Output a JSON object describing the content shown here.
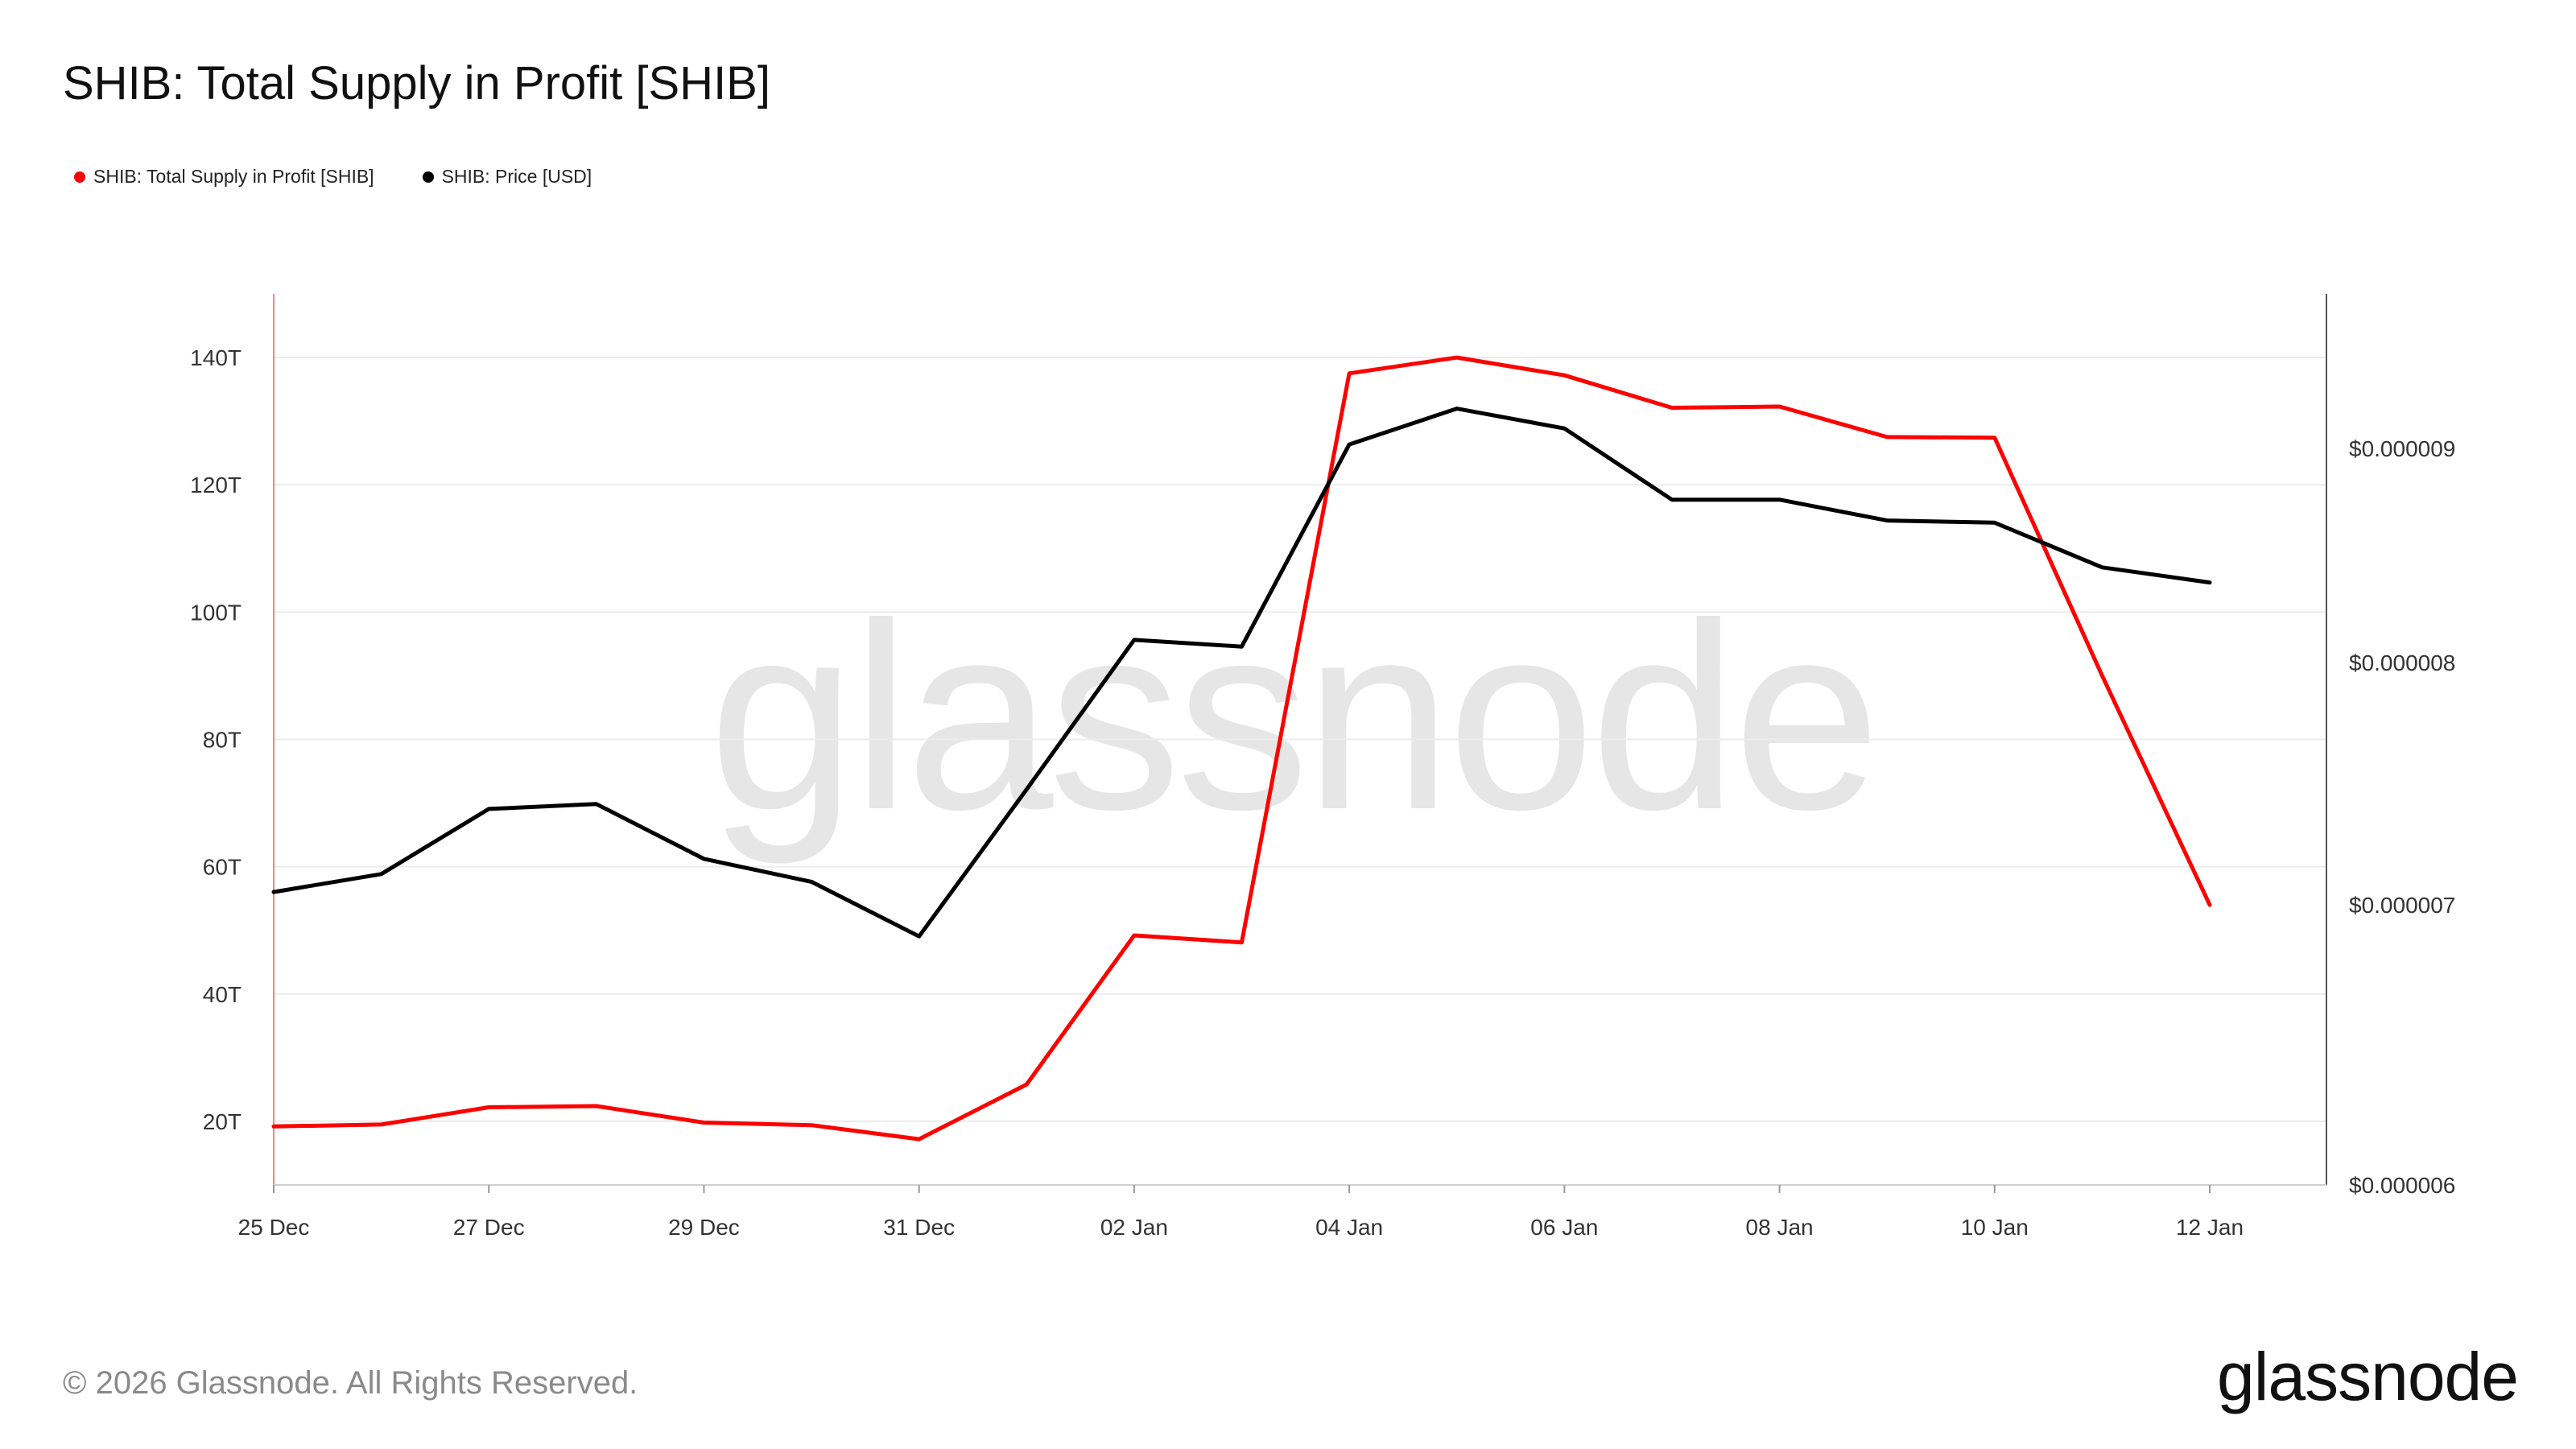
{
  "title": "SHIB: Total Supply in Profit [SHIB]",
  "legend": [
    {
      "label": "SHIB: Total Supply in Profit [SHIB]",
      "color": "#ff0000"
    },
    {
      "label": "SHIB: Price [USD]",
      "color": "#000000"
    }
  ],
  "watermark": "glassnode",
  "footer": {
    "copyright": "© 2026 Glassnode. All Rights Reserved.",
    "logo": "glassnode"
  },
  "chart_data": {
    "type": "line",
    "x": [
      "25 Dec",
      "26 Dec",
      "27 Dec",
      "28 Dec",
      "29 Dec",
      "30 Dec",
      "31 Dec",
      "01 Jan",
      "02 Jan",
      "03 Jan",
      "04 Jan",
      "05 Jan",
      "06 Jan",
      "07 Jan",
      "08 Jan",
      "09 Jan",
      "10 Jan",
      "11 Jan",
      "12 Jan"
    ],
    "x_tick_labels": [
      "25 Dec",
      "27 Dec",
      "29 Dec",
      "31 Dec",
      "02 Jan",
      "04 Jan",
      "06 Jan",
      "08 Jan",
      "10 Jan",
      "12 Jan"
    ],
    "x_tick_indices": [
      0,
      2,
      4,
      6,
      8,
      10,
      12,
      14,
      16,
      18
    ],
    "y_left": {
      "ylim": [
        10,
        150
      ],
      "ticks": [
        20,
        40,
        60,
        80,
        100,
        120,
        140
      ],
      "tick_labels": [
        "20T",
        "40T",
        "60T",
        "80T",
        "100T",
        "120T",
        "140T"
      ]
    },
    "y_right": {
      "scale": "log",
      "ylim": [
        6e-06,
        9.8e-06
      ],
      "ticks": [
        6e-06,
        7e-06,
        8e-06,
        9e-06
      ],
      "tick_labels": [
        "$0.000006",
        "$0.000007",
        "$0.000008",
        "$0.000009"
      ]
    },
    "grid": true,
    "legend_position": "top-left",
    "series": [
      {
        "name": "SHIB: Total Supply in Profit [SHIB]",
        "axis": "left",
        "color": "#ff0000",
        "values": [
          19.2,
          19.5,
          22.2,
          22.4,
          19.8,
          19.4,
          17.2,
          25.8,
          49.2,
          48.1,
          137.5,
          140,
          137.2,
          132.1,
          132.3,
          127.5,
          127.4,
          90,
          54
        ]
      },
      {
        "name": "SHIB: Price [USD]",
        "axis": "right",
        "color": "#000000",
        "values": [
          7.05e-06,
          7.12e-06,
          7.38e-06,
          7.4e-06,
          7.18e-06,
          7.09e-06,
          6.88e-06,
          7.46e-06,
          8.1e-06,
          8.07e-06,
          9.02e-06,
          9.2e-06,
          9.1e-06,
          8.75e-06,
          8.75e-06,
          8.65e-06,
          8.64e-06,
          8.43e-06,
          8.36e-06
        ]
      }
    ]
  }
}
